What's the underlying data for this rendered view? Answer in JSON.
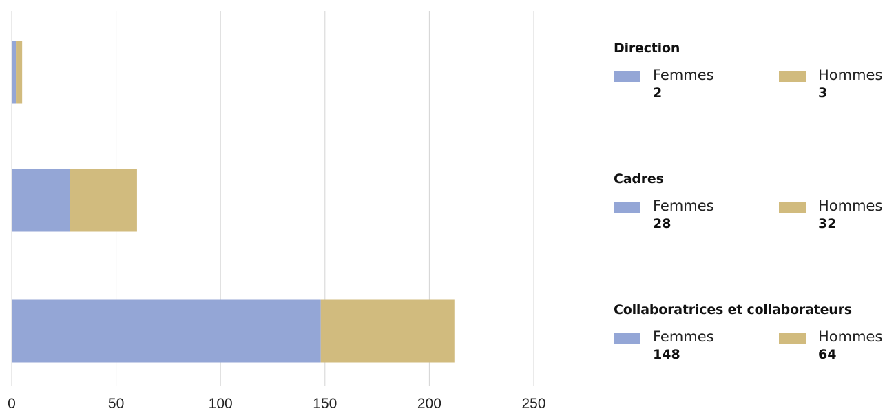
{
  "chart_data": {
    "type": "bar",
    "orientation": "horizontal",
    "stacked": true,
    "categories": [
      "Direction",
      "Cadres",
      "Collaboratrices et collaborateurs"
    ],
    "series": [
      {
        "name": "Femmes",
        "values": [
          2,
          28,
          148
        ],
        "color": "#94a6d6"
      },
      {
        "name": "Hommes",
        "values": [
          3,
          32,
          64
        ],
        "color": "#d1bb7e"
      }
    ],
    "x_ticks": [
      0,
      50,
      100,
      150,
      200,
      250
    ],
    "xlim": [
      0,
      250
    ],
    "grid": "vertical",
    "legend_placement": "right"
  }
}
